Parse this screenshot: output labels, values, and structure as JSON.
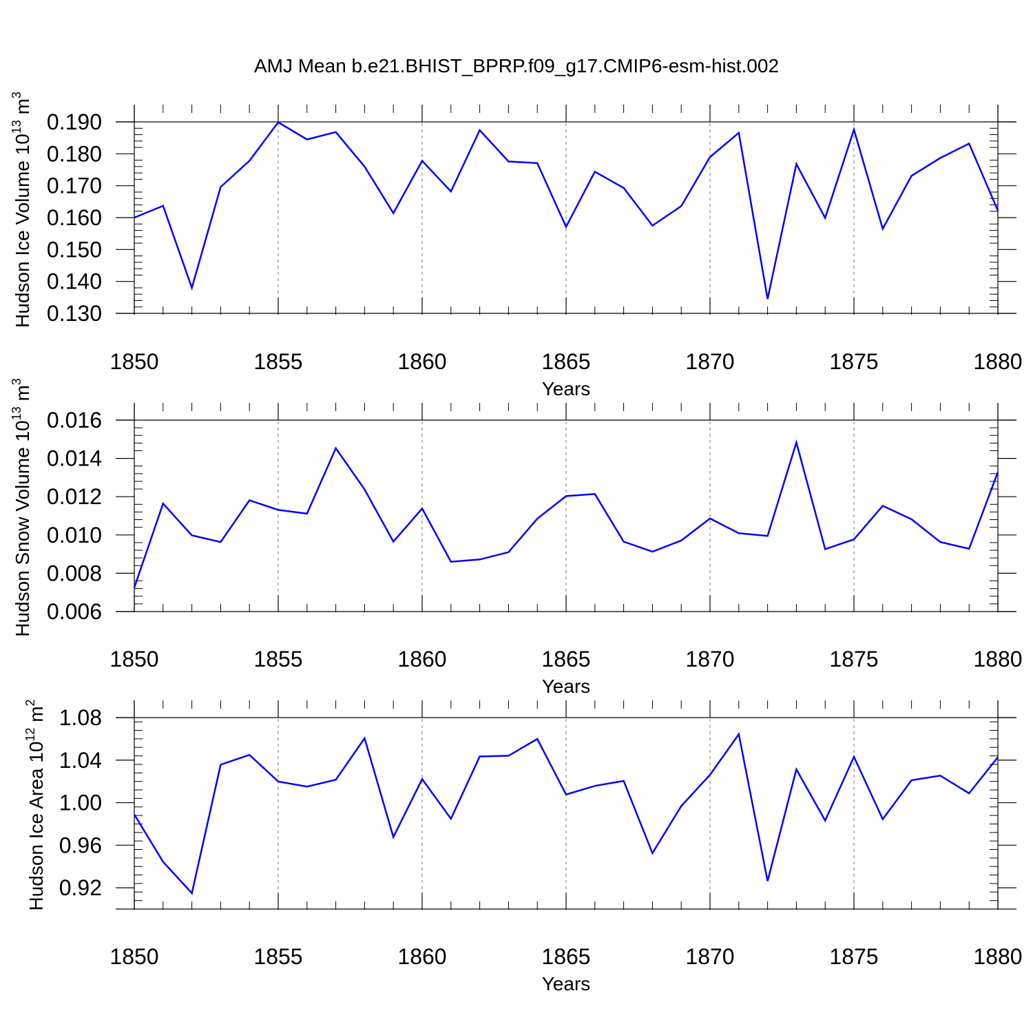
{
  "title": "AMJ Mean b.e21.BHIST_BPRP.f09_g17.CMIP6-esm-hist.002",
  "chart_data": [
    {
      "type": "line",
      "ylabel": "Hudson Ice Volume 10",
      "ylabel_exp": "13",
      "ylabel_unit": " m",
      "ylabel_unit_exp": "3",
      "xlabel": "Years",
      "xlim": [
        1850,
        1880
      ],
      "ylim": [
        0.13,
        0.19
      ],
      "x_ticks": [
        "1850",
        "1855",
        "1860",
        "1865",
        "1870",
        "1875",
        "1880"
      ],
      "y_ticks": [
        "0.130",
        "0.140",
        "0.150",
        "0.160",
        "0.170",
        "0.180",
        "0.190"
      ],
      "color": "#0000ff",
      "x": [
        1850,
        1851,
        1852,
        1853,
        1854,
        1855,
        1856,
        1857,
        1858,
        1859,
        1860,
        1861,
        1862,
        1863,
        1864,
        1865,
        1866,
        1867,
        1868,
        1869,
        1870,
        1871,
        1872,
        1873,
        1874,
        1875,
        1876,
        1877,
        1878,
        1879,
        1880
      ],
      "values": [
        0.16,
        0.1637,
        0.138,
        0.1696,
        0.1778,
        0.1899,
        0.1845,
        0.1868,
        0.176,
        0.1614,
        0.1778,
        0.1682,
        0.1874,
        0.1776,
        0.1771,
        0.1571,
        0.1744,
        0.1693,
        0.1575,
        0.1636,
        0.179,
        0.1866,
        0.1345,
        0.1768,
        0.1599,
        0.1876,
        0.1565,
        0.1731,
        0.1787,
        0.1832,
        0.1622
      ]
    },
    {
      "type": "line",
      "ylabel": "Hudson Snow Volume 10",
      "ylabel_exp": "13",
      "ylabel_unit": " m",
      "ylabel_unit_exp": "3",
      "xlabel": "Years",
      "xlim": [
        1850,
        1880
      ],
      "ylim": [
        0.006,
        0.016
      ],
      "x_ticks": [
        "1850",
        "1855",
        "1860",
        "1865",
        "1870",
        "1875",
        "1880"
      ],
      "y_ticks": [
        "0.006",
        "0.008",
        "0.010",
        "0.012",
        "0.014",
        "0.016"
      ],
      "color": "#0000ff",
      "x": [
        1850,
        1851,
        1852,
        1853,
        1854,
        1855,
        1856,
        1857,
        1858,
        1859,
        1860,
        1861,
        1862,
        1863,
        1864,
        1865,
        1866,
        1867,
        1868,
        1869,
        1870,
        1871,
        1872,
        1873,
        1874,
        1875,
        1876,
        1877,
        1878,
        1879,
        1880
      ],
      "values": [
        0.00725,
        0.01164,
        0.00998,
        0.00963,
        0.01181,
        0.01131,
        0.01111,
        0.01453,
        0.01238,
        0.00965,
        0.01138,
        0.0086,
        0.00872,
        0.0091,
        0.01085,
        0.01203,
        0.01214,
        0.00965,
        0.00913,
        0.00971,
        0.01086,
        0.01009,
        0.00995,
        0.01483,
        0.00926,
        0.00977,
        0.01152,
        0.01082,
        0.00963,
        0.00928,
        0.01328
      ]
    },
    {
      "type": "line",
      "ylabel": "Hudson Ice Area 10",
      "ylabel_exp": "12",
      "ylabel_unit": " m",
      "ylabel_unit_exp": "2",
      "xlabel": "Years",
      "xlim": [
        1850,
        1880
      ],
      "ylim": [
        0.9,
        1.08
      ],
      "x_ticks": [
        "1850",
        "1855",
        "1860",
        "1865",
        "1870",
        "1875",
        "1880"
      ],
      "y_ticks": [
        "0.92",
        "0.96",
        "1.00",
        "1.04",
        "1.08"
      ],
      "color": "#0000ff",
      "x": [
        1850,
        1851,
        1852,
        1853,
        1854,
        1855,
        1856,
        1857,
        1858,
        1859,
        1860,
        1861,
        1862,
        1863,
        1864,
        1865,
        1866,
        1867,
        1868,
        1869,
        1870,
        1871,
        1872,
        1873,
        1874,
        1875,
        1876,
        1877,
        1878,
        1879,
        1880
      ],
      "values": [
        0.9889,
        0.9444,
        0.9149,
        1.0358,
        1.0449,
        1.0199,
        1.0151,
        1.0215,
        1.0606,
        0.9677,
        1.0222,
        0.9849,
        1.0434,
        1.0441,
        1.0599,
        1.0077,
        1.0158,
        1.0205,
        0.9525,
        0.9968,
        1.0262,
        1.0644,
        0.9263,
        1.0313,
        0.9832,
        1.0431,
        0.9845,
        1.0211,
        1.0254,
        1.0088,
        1.0428
      ]
    }
  ]
}
